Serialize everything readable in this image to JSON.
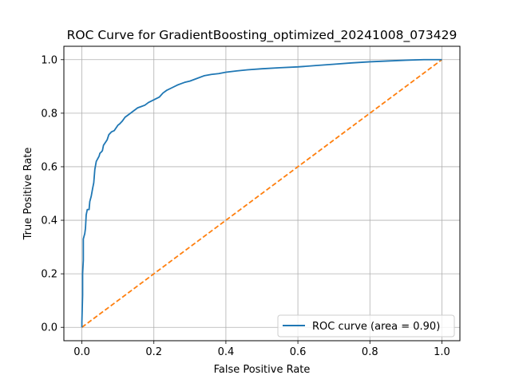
{
  "chart_data": {
    "type": "line",
    "title": "ROC Curve for GradientBoosting_optimized_20241008_073429",
    "xlabel": "False Positive Rate",
    "ylabel": "True Positive Rate",
    "xlim": [
      -0.05,
      1.05
    ],
    "ylim": [
      -0.05,
      1.05
    ],
    "xticks": [
      0.0,
      0.2,
      0.4,
      0.6,
      0.8,
      1.0
    ],
    "yticks": [
      0.0,
      0.2,
      0.4,
      0.6,
      0.8,
      1.0
    ],
    "tick_labels_x": [
      "0.0",
      "0.2",
      "0.4",
      "0.6",
      "0.8",
      "1.0"
    ],
    "tick_labels_y": [
      "0.0",
      "0.2",
      "0.4",
      "0.6",
      "0.8",
      "1.0"
    ],
    "grid": true,
    "legend_position": "lower-right",
    "series": [
      {
        "name": "ROC curve (area = 0.90)",
        "color": "#1f77b4",
        "style": "solid",
        "x": [
          0.0,
          0.0,
          0.002,
          0.002,
          0.004,
          0.004,
          0.006,
          0.008,
          0.01,
          0.012,
          0.015,
          0.02,
          0.022,
          0.026,
          0.03,
          0.033,
          0.036,
          0.04,
          0.044,
          0.048,
          0.05,
          0.054,
          0.057,
          0.06,
          0.065,
          0.07,
          0.075,
          0.082,
          0.09,
          0.1,
          0.105,
          0.112,
          0.12,
          0.125,
          0.135,
          0.145,
          0.155,
          0.165,
          0.175,
          0.185,
          0.2,
          0.215,
          0.225,
          0.235,
          0.25,
          0.265,
          0.275,
          0.285,
          0.3,
          0.32,
          0.34,
          0.36,
          0.38,
          0.4,
          0.43,
          0.46,
          0.5,
          0.55,
          0.6,
          0.65,
          0.7,
          0.75,
          0.8,
          0.85,
          0.9,
          0.95,
          1.0
        ],
        "y": [
          0.0,
          0.02,
          0.12,
          0.2,
          0.25,
          0.33,
          0.34,
          0.35,
          0.37,
          0.42,
          0.44,
          0.44,
          0.47,
          0.49,
          0.52,
          0.54,
          0.59,
          0.62,
          0.63,
          0.64,
          0.65,
          0.655,
          0.66,
          0.68,
          0.69,
          0.7,
          0.72,
          0.73,
          0.735,
          0.755,
          0.76,
          0.77,
          0.785,
          0.79,
          0.8,
          0.81,
          0.82,
          0.825,
          0.83,
          0.84,
          0.85,
          0.86,
          0.875,
          0.885,
          0.895,
          0.905,
          0.91,
          0.915,
          0.92,
          0.93,
          0.94,
          0.945,
          0.948,
          0.953,
          0.958,
          0.962,
          0.966,
          0.97,
          0.973,
          0.978,
          0.983,
          0.988,
          0.992,
          0.995,
          0.998,
          1.0,
          1.0
        ]
      },
      {
        "name": "",
        "color": "#ff7f0e",
        "style": "dashed",
        "x": [
          0.0,
          1.0
        ],
        "y": [
          0.0,
          1.0
        ]
      }
    ]
  }
}
